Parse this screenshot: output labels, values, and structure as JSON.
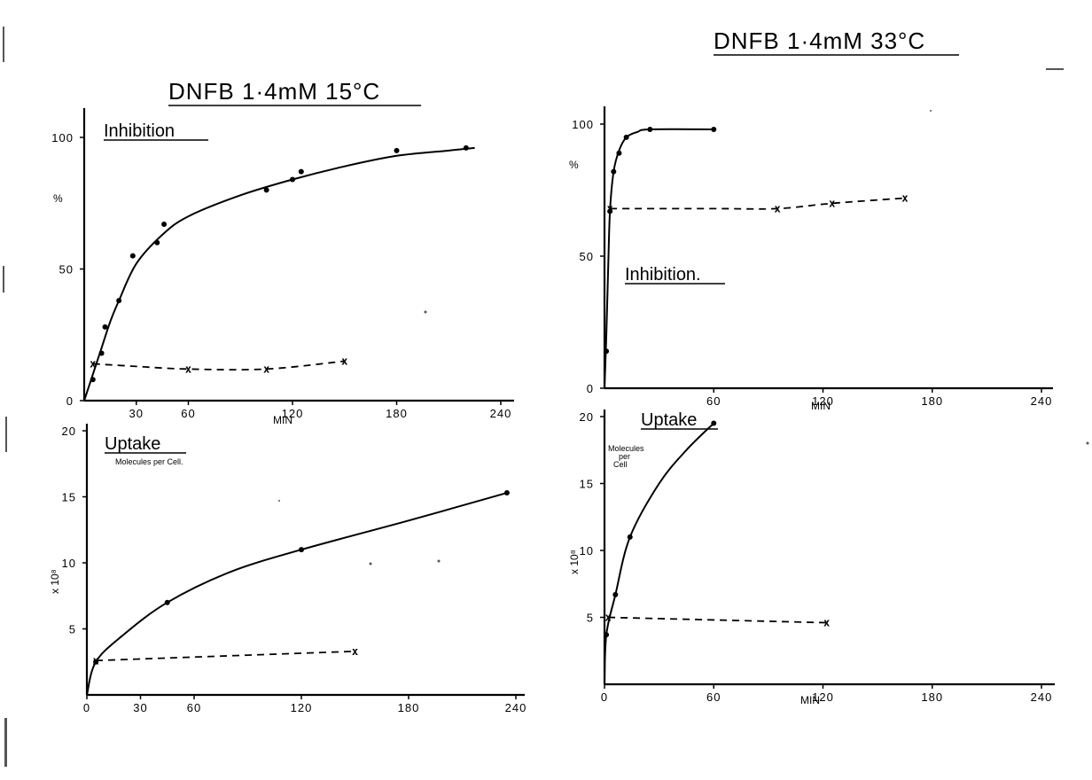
{
  "chart_data": [
    {
      "id": "p15_inhib",
      "type": "line",
      "panel_title": "DNFB 1·4mM 15°C",
      "label": "Inhibition",
      "ylabel": "%",
      "xlabel": "MIN",
      "xlim": [
        0,
        240
      ],
      "ylim": [
        0,
        100
      ],
      "xticks": [
        {
          "v": 30,
          "t": "30"
        },
        {
          "v": 60,
          "t": "60"
        },
        {
          "v": 120,
          "t": "120"
        },
        {
          "v": 180,
          "t": "180"
        },
        {
          "v": 240,
          "t": "240"
        }
      ],
      "yticks": [
        {
          "v": 0,
          "t": "0"
        },
        {
          "v": 50,
          "t": "50"
        },
        {
          "v": 100,
          "t": "100"
        }
      ],
      "series": [
        {
          "style": "solid",
          "marker": "dot",
          "points": [
            [
              5,
              8
            ],
            [
              10,
              18
            ],
            [
              12,
              28
            ],
            [
              20,
              38
            ],
            [
              28,
              55
            ],
            [
              42,
              60
            ],
            [
              46,
              67
            ],
            [
              105,
              80
            ],
            [
              120,
              84
            ],
            [
              125,
              87
            ],
            [
              180,
              95
            ],
            [
              220,
              96
            ]
          ],
          "curve": [
            [
              0,
              0
            ],
            [
              5,
              10
            ],
            [
              10,
              20
            ],
            [
              15,
              30
            ],
            [
              20,
              38
            ],
            [
              30,
              52
            ],
            [
              45,
              63
            ],
            [
              60,
              70
            ],
            [
              90,
              78
            ],
            [
              120,
              84
            ],
            [
              150,
              89
            ],
            [
              180,
              93
            ],
            [
              210,
              95
            ],
            [
              225,
              96
            ]
          ]
        },
        {
          "style": "dashed",
          "marker": "x",
          "points": [
            [
              5,
              14
            ],
            [
              60,
              12
            ],
            [
              105,
              12
            ],
            [
              150,
              15
            ]
          ],
          "curve": [
            [
              5,
              14
            ],
            [
              30,
              13
            ],
            [
              60,
              12
            ],
            [
              105,
              12
            ],
            [
              150,
              15
            ]
          ]
        }
      ]
    },
    {
      "id": "p33_inhib",
      "type": "line",
      "panel_title": "DNFB 1·4mM 33°C",
      "label": "Inhibition.",
      "ylabel": "%",
      "xlabel": "MIN",
      "xlim": [
        0,
        240
      ],
      "ylim": [
        0,
        100
      ],
      "xticks": [
        {
          "v": 60,
          "t": "60"
        },
        {
          "v": 120,
          "t": "120"
        },
        {
          "v": 180,
          "t": "180"
        },
        {
          "v": 240,
          "t": "240"
        }
      ],
      "yticks": [
        {
          "v": 0,
          "t": "0"
        },
        {
          "v": 50,
          "t": "50"
        },
        {
          "v": 100,
          "t": "100"
        }
      ],
      "series": [
        {
          "style": "solid",
          "marker": "dot",
          "points": [
            [
              1,
              14
            ],
            [
              3,
              67
            ],
            [
              5,
              82
            ],
            [
              8,
              89
            ],
            [
              12,
              95
            ],
            [
              25,
              98
            ],
            [
              60,
              98
            ]
          ],
          "curve": [
            [
              0,
              0
            ],
            [
              1,
              20
            ],
            [
              2,
              45
            ],
            [
              3,
              67
            ],
            [
              5,
              82
            ],
            [
              8,
              90
            ],
            [
              12,
              95
            ],
            [
              18,
              97
            ],
            [
              25,
              98
            ],
            [
              60,
              98
            ]
          ]
        },
        {
          "style": "dashed",
          "marker": "x",
          "points": [
            [
              3,
              68
            ],
            [
              95,
              68
            ],
            [
              125,
              70
            ],
            [
              165,
              72
            ]
          ],
          "curve": [
            [
              3,
              68
            ],
            [
              60,
              68
            ],
            [
              95,
              68
            ],
            [
              125,
              70
            ],
            [
              165,
              72
            ]
          ]
        }
      ]
    },
    {
      "id": "p15_uptake",
      "type": "line",
      "label": "Uptake",
      "sublabel": "Molecules per Cell.",
      "ylabel": "x 10⁸",
      "xlabel": "",
      "xlim": [
        0,
        240
      ],
      "ylim": [
        0,
        20
      ],
      "xticks": [
        {
          "v": 0,
          "t": "0"
        },
        {
          "v": 30,
          "t": "30"
        },
        {
          "v": 60,
          "t": "60"
        },
        {
          "v": 120,
          "t": "120"
        },
        {
          "v": 180,
          "t": "180"
        },
        {
          "v": 240,
          "t": "240"
        }
      ],
      "yticks": [
        {
          "v": 5,
          "t": "5"
        },
        {
          "v": 10,
          "t": "10"
        },
        {
          "v": 15,
          "t": "15"
        },
        {
          "v": 20,
          "t": "20"
        }
      ],
      "series": [
        {
          "style": "solid",
          "marker": "dot",
          "points": [
            [
              5,
              2.5
            ],
            [
              45,
              7
            ],
            [
              120,
              11
            ],
            [
              235,
              15.3
            ]
          ],
          "curve": [
            [
              0,
              0
            ],
            [
              5,
              2.5
            ],
            [
              20,
              4.5
            ],
            [
              45,
              7
            ],
            [
              80,
              9.3
            ],
            [
              120,
              11
            ],
            [
              180,
              13.2
            ],
            [
              235,
              15.3
            ]
          ]
        },
        {
          "style": "dashed",
          "marker": "x",
          "points": [
            [
              5,
              2.6
            ],
            [
              150,
              3.3
            ]
          ],
          "curve": [
            [
              5,
              2.6
            ],
            [
              150,
              3.3
            ]
          ]
        }
      ]
    },
    {
      "id": "p33_uptake",
      "type": "line",
      "label": "Uptake",
      "sublabel": "Molecules per Cell",
      "ylabel": "x 10⁸",
      "xlabel": "MIN",
      "xlim": [
        0,
        240
      ],
      "ylim": [
        0,
        20
      ],
      "xticks": [
        {
          "v": 0,
          "t": "0"
        },
        {
          "v": 60,
          "t": "60"
        },
        {
          "v": 120,
          "t": "120"
        },
        {
          "v": 180,
          "t": "180"
        },
        {
          "v": 240,
          "t": "240"
        }
      ],
      "yticks": [
        {
          "v": 5,
          "t": "5"
        },
        {
          "v": 10,
          "t": "10"
        },
        {
          "v": 15,
          "t": "15"
        },
        {
          "v": 20,
          "t": "20"
        }
      ],
      "series": [
        {
          "style": "solid",
          "marker": "dot",
          "points": [
            [
              1,
              3.7
            ],
            [
              6,
              6.7
            ],
            [
              14,
              11
            ],
            [
              60,
              19.5
            ]
          ],
          "curve": [
            [
              0,
              0
            ],
            [
              1,
              3.7
            ],
            [
              6,
              6.7
            ],
            [
              14,
              11
            ],
            [
              30,
              15
            ],
            [
              45,
              17.5
            ],
            [
              60,
              19.5
            ]
          ]
        },
        {
          "style": "dashed",
          "marker": "x",
          "points": [
            [
              2,
              5
            ],
            [
              122,
              4.6
            ]
          ],
          "curve": [
            [
              2,
              5
            ],
            [
              122,
              4.6
            ]
          ]
        }
      ]
    }
  ]
}
